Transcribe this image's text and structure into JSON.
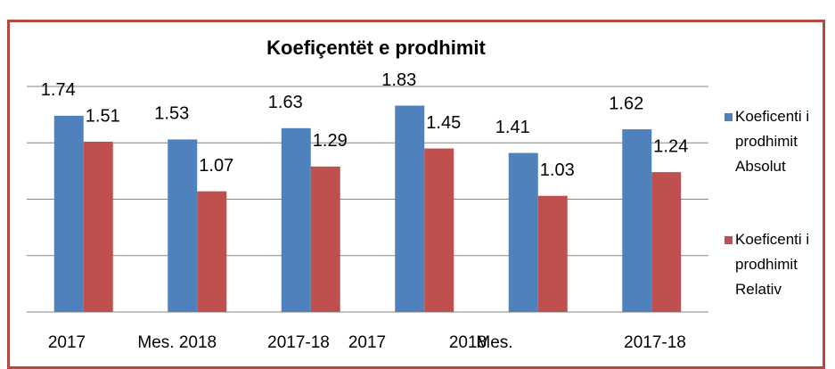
{
  "chart_data": {
    "type": "bar",
    "title": "Koefiçentët e prodhimit",
    "categories": [
      "2017",
      "2018",
      "2017-18",
      "2017",
      "2018",
      "2017-18"
    ],
    "group_labels": [
      "Mes.",
      "Mes."
    ],
    "series": [
      {
        "name": "Koeficenti i prodhimit Absolut",
        "color": "#4f81bd",
        "values": [
          1.74,
          1.53,
          1.63,
          1.83,
          1.41,
          1.62
        ]
      },
      {
        "name": "Koeficenti i prodhimit Relativ",
        "color": "#c0504d",
        "values": [
          1.51,
          1.07,
          1.29,
          1.45,
          1.03,
          1.24
        ]
      }
    ],
    "ylim": [
      0,
      2
    ],
    "yticks": [
      0,
      0.5,
      1,
      1.5,
      2
    ],
    "grid": true,
    "legend": "right"
  }
}
